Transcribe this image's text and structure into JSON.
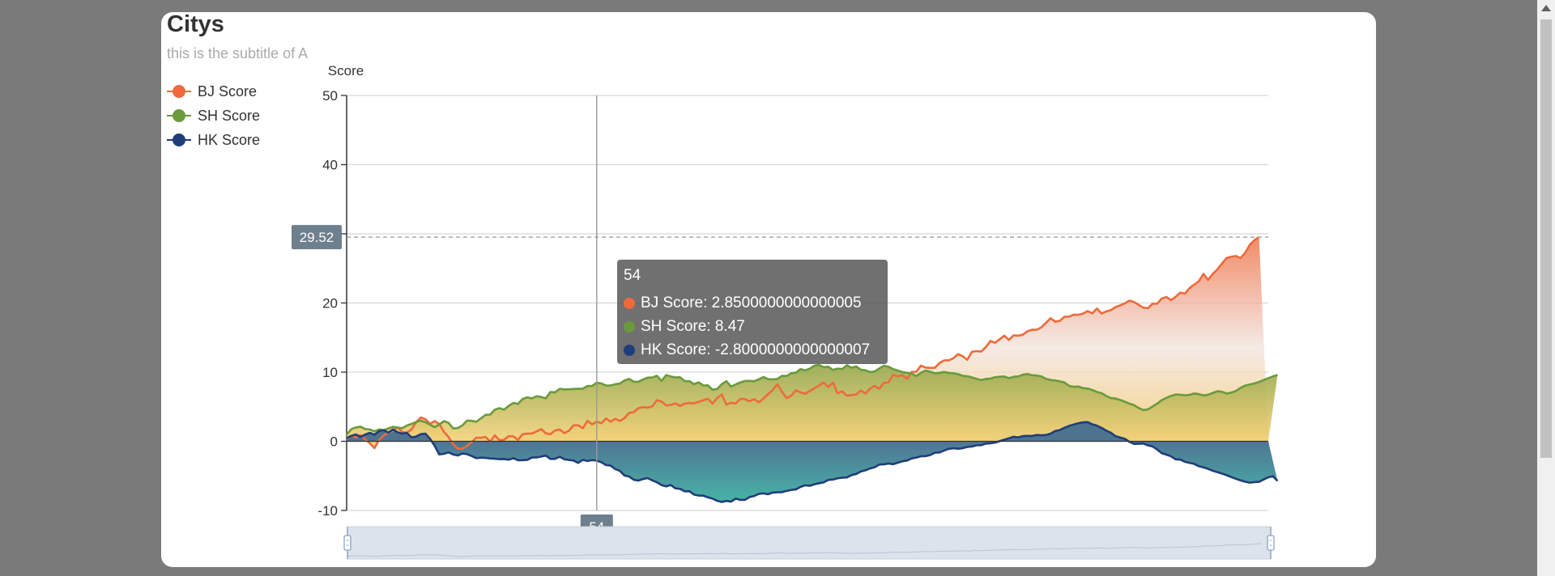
{
  "colors": {
    "page_bg": "#7a7a7a",
    "card_bg": "#ffffff",
    "bj": "#ee6a3c",
    "sh": "#6a9a3c",
    "hk": "#1f3d7a",
    "axis_pointer_label_bg": "#6e7f8d"
  },
  "chart_data": {
    "type": "area",
    "title": "Citys",
    "subtitle": "this is the subtitle of A",
    "ylabel": "Score",
    "xlabel": "",
    "ylim": [
      -10,
      50
    ],
    "yticks": [
      -10,
      0,
      10,
      20,
      30,
      40,
      50
    ],
    "grid": true,
    "legend_position": "top-left",
    "x_count": 200,
    "data_zoom": "slider-bottom",
    "series": [
      {
        "name": "BJ Score",
        "values": [
          0.35,
          0.79,
          0.56,
          0.9,
          0.3,
          -0.28,
          -0.99,
          0.17,
          0.84,
          1.25,
          1.5,
          2.03,
          1.34,
          1.25,
          1.71,
          2.76,
          3.44,
          3.2,
          2.55,
          2.93,
          2.5,
          1.38,
          0.61,
          -0.42,
          -1.07,
          -1.06,
          -0.65,
          -0.12,
          0.54,
          0.51,
          0.63,
          -0.04,
          0.87,
          0.15,
          0.21,
          0.74,
          0.73,
          0.21,
          1.03,
          1.11,
          1.13,
          1.43,
          1.77,
          1.16,
          1.03,
          1.56,
          1.71,
          1.18,
          1.52,
          2.31,
          2.32,
          1.89,
          2.95,
          2.46,
          2.85,
          2.61,
          3.3,
          2.83,
          3.26,
          2.94,
          3.36,
          4.11,
          4.22,
          4.79,
          4.94,
          4.88,
          5.04,
          5.95,
          5.74,
          5.19,
          5.26,
          5.49,
          5.11,
          5.46,
          5.55,
          5.48,
          5.71,
          5.94,
          6.14,
          5.45,
          6.26,
          6.76,
          5.31,
          5.57,
          5.48,
          6.14,
          6.1,
          5.8,
          6.11,
          5.64,
          6.19,
          6.83,
          7.4,
          8.25,
          7.16,
          6.24,
          6.59,
          7.38,
          7.08,
          6.87,
          7.28,
          7.67,
          8.07,
          8.51,
          7.84,
          8.5,
          6.95,
          7.23,
          6.6,
          6.69,
          6.76,
          7.35,
          6.9,
          7.61,
          8.02,
          7.58,
          8.44,
          8.51,
          9.62,
          9.4,
          9.56,
          9.03,
          10.04,
          10.06,
          10.94,
          10.65,
          10.62,
          10.62,
          11.32,
          11.7,
          11.71,
          12.01,
          12.6,
          12.31,
          11.78,
          12.94,
          13.04,
          12.98,
          13.61,
          14.51,
          14.24,
          14.76,
          15.26,
          14.66,
          15.31,
          15.27,
          15.4,
          15.91,
          16.14,
          16.13,
          16.48,
          17.14,
          17.79,
          17.29,
          17.42,
          18.01,
          18.02,
          18.31,
          18.29,
          18.47,
          18.83,
          18.5,
          19.2,
          18.48,
          18.77,
          18.96,
          19.4,
          19.65,
          19.94,
          20.34,
          20.15,
          19.74,
          19.32,
          19.24,
          19.87,
          19.9,
          20.64,
          20.87,
          20.4,
          20.9,
          21.49,
          21.36,
          22.14,
          22.66,
          23.14,
          24.22,
          23.33,
          24.2,
          24.85,
          25.71,
          26.51,
          26.68,
          26.79,
          26.5,
          27.25,
          28.41,
          29.08,
          29.52
        ]
      },
      {
        "name": "SH Score",
        "values": [
          0.94,
          1.76,
          2.01,
          2.11,
          1.78,
          1.71,
          1.44,
          1.72,
          1.61,
          1.86,
          2.1,
          1.98,
          1.89,
          2.28,
          2.51,
          2.79,
          2.98,
          2.75,
          2.42,
          2.04,
          2.42,
          2.92,
          2.68,
          1.86,
          1.92,
          2.3,
          2.99,
          2.96,
          2.82,
          3.32,
          3.82,
          3.86,
          4.58,
          4.8,
          4.57,
          5.13,
          5.55,
          5.41,
          6.12,
          6.36,
          6.2,
          6.51,
          6.41,
          6.22,
          7.13,
          7.08,
          7.59,
          7.51,
          7.52,
          7.57,
          7.59,
          7.61,
          7.99,
          8.01,
          8.47,
          8.36,
          8.06,
          8.08,
          8.25,
          8.35,
          8.8,
          9.02,
          8.61,
          8.6,
          8.94,
          9.21,
          9.23,
          9.47,
          8.72,
          9.58,
          9.37,
          9.24,
          9.26,
          8.7,
          8.7,
          8.26,
          8.53,
          8.07,
          8.1,
          7.46,
          7.56,
          8.26,
          8.69,
          7.92,
          8.22,
          8.52,
          8.72,
          8.73,
          8.69,
          8.97,
          9.3,
          8.99,
          8.95,
          9.01,
          9.47,
          9.45,
          9.84,
          9.92,
          10.43,
          10.26,
          10.5,
          10.94,
          11.03,
          10.73,
          10.78,
          10.32,
          10.51,
          10.45,
          11.0,
          10.63,
          10.84,
          10.36,
          10.28,
          10.02,
          10.09,
          10.53,
          10.92,
          10.78,
          10.44,
          10.23,
          10.01,
          9.91,
          9.79,
          9.43,
          9.91,
          10.23,
          10.06,
          9.84,
          9.89,
          10.02,
          9.89,
          9.84,
          9.72,
          9.47,
          9.41,
          9.24,
          9.04,
          8.86,
          9.01,
          9.06,
          9.27,
          9.34,
          9.37,
          9.13,
          9.33,
          9.38,
          9.63,
          9.73,
          9.56,
          9.52,
          9.39,
          9.03,
          8.87,
          8.8,
          8.67,
          8.5,
          8.01,
          7.89,
          7.92,
          7.68,
          7.63,
          7.42,
          7.14,
          6.96,
          6.56,
          6.25,
          6.19,
          5.98,
          5.73,
          5.45,
          5.24,
          4.82,
          4.52,
          4.61,
          5.02,
          5.45,
          5.95,
          6.28,
          6.57,
          6.76,
          6.74,
          6.65,
          6.72,
          6.91,
          6.83,
          6.63,
          6.73,
          6.99,
          7.24,
          7.16,
          6.91,
          7.04,
          7.27,
          7.72,
          8.06,
          8.22,
          8.36,
          8.58,
          8.86,
          9.13,
          9.38,
          9.59
        ]
      },
      {
        "name": "HK Score",
        "values": [
          0.48,
          0.78,
          1.0,
          0.62,
          0.98,
          1.22,
          0.95,
          1.48,
          1.62,
          1.26,
          1.71,
          1.3,
          1.11,
          1.22,
          0.57,
          0.68,
          1.04,
          1.11,
          0.37,
          -0.64,
          -1.9,
          -1.81,
          -1.6,
          -1.91,
          -2.05,
          -1.76,
          -1.86,
          -2.13,
          -2.44,
          -2.36,
          -2.4,
          -2.48,
          -2.52,
          -2.58,
          -2.57,
          -2.66,
          -2.44,
          -2.74,
          -2.73,
          -2.68,
          -2.35,
          -2.33,
          -2.21,
          -2.07,
          -2.55,
          -2.54,
          -2.23,
          -2.6,
          -2.7,
          -2.79,
          -3.12,
          -2.68,
          -2.85,
          -2.72,
          -2.8,
          -3.03,
          -3.43,
          -3.52,
          -4.01,
          -4.28,
          -4.95,
          -5.09,
          -5.57,
          -5.68,
          -5.45,
          -5.32,
          -5.65,
          -5.92,
          -6.33,
          -6.52,
          -6.32,
          -6.8,
          -6.88,
          -7.23,
          -7.22,
          -7.7,
          -7.84,
          -7.86,
          -8.1,
          -8.29,
          -8.6,
          -8.77,
          -8.62,
          -8.72,
          -8.29,
          -8.47,
          -8.46,
          -8.06,
          -7.91,
          -7.6,
          -7.53,
          -7.65,
          -7.42,
          -7.37,
          -7.36,
          -7.17,
          -7.03,
          -6.95,
          -6.59,
          -6.36,
          -6.43,
          -6.21,
          -6.06,
          -5.94,
          -5.58,
          -5.53,
          -5.35,
          -5.26,
          -5.23,
          -4.89,
          -4.73,
          -4.37,
          -4.2,
          -3.93,
          -3.76,
          -3.36,
          -3.33,
          -3.21,
          -3.31,
          -3.1,
          -2.89,
          -2.79,
          -2.48,
          -2.35,
          -2.16,
          -2.15,
          -1.99,
          -1.65,
          -1.62,
          -1.34,
          -1.09,
          -1.01,
          -1.07,
          -1.0,
          -0.82,
          -0.76,
          -0.57,
          -0.56,
          -0.34,
          -0.29,
          -0.19,
          0.03,
          0.24,
          0.44,
          0.66,
          0.57,
          0.75,
          0.78,
          0.77,
          0.92,
          0.87,
          0.91,
          1.11,
          1.49,
          1.62,
          1.97,
          2.23,
          2.42,
          2.62,
          2.74,
          2.77,
          2.45,
          2.26,
          1.94,
          1.55,
          1.23,
          0.75,
          0.55,
          0.37,
          -0.07,
          -0.38,
          -0.36,
          -0.31,
          -0.59,
          -0.74,
          -1.18,
          -1.72,
          -1.93,
          -2.17,
          -2.61,
          -2.64,
          -2.97,
          -3.11,
          -3.27,
          -3.6,
          -3.77,
          -3.98,
          -4.26,
          -4.46,
          -4.66,
          -4.9,
          -5.16,
          -5.42,
          -5.64,
          -5.85,
          -5.98,
          -5.9,
          -5.86,
          -5.52,
          -5.2,
          -5.04,
          -5.73
        ]
      }
    ],
    "axis_pointer": {
      "x_index": 54,
      "y_value": "29.52",
      "x_label": "54"
    },
    "tooltip": {
      "title": "54",
      "rows": [
        {
          "name": "BJ Score",
          "value": "2.8500000000000005"
        },
        {
          "name": "SH Score",
          "value": "8.47"
        },
        {
          "name": "HK Score",
          "value": "-2.8000000000000007"
        }
      ]
    }
  },
  "tooltip_text": {
    "title": "54",
    "row0": "BJ Score: 2.8500000000000005",
    "row1": "SH Score: 8.47",
    "row2": "HK Score: -2.8000000000000007"
  },
  "legend": {
    "items": [
      "BJ Score",
      "SH Score",
      "HK Score"
    ]
  }
}
